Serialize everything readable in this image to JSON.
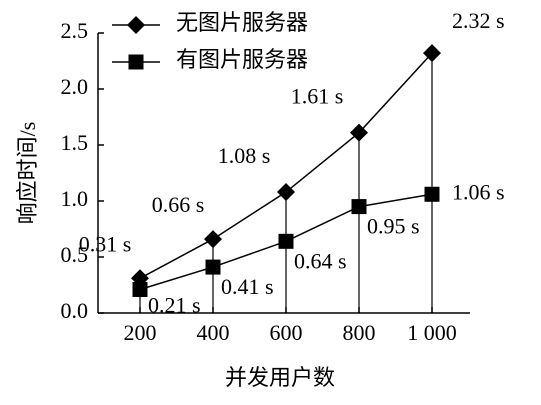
{
  "chart_data": {
    "type": "line",
    "x_label": "并发用户数",
    "y_label": "响应时间/s",
    "categories": [
      "200",
      "400",
      "600",
      "800",
      "1 000"
    ],
    "series": [
      {
        "name": "无图片服务器",
        "color": "#000000",
        "marker": "diamond",
        "values": [
          0.31,
          0.66,
          1.08,
          1.61,
          2.32
        ],
        "value_labels": [
          "0.31 s",
          "0.66 s",
          "1.08 s",
          "1.61 s",
          "2.32 s"
        ]
      },
      {
        "name": "有图片服务器",
        "color": "#000000",
        "marker": "square",
        "values": [
          0.21,
          0.41,
          0.64,
          0.95,
          1.06
        ],
        "value_labels": [
          "0.21 s",
          "0.41 s",
          "0.64 s",
          "0.95 s",
          "1.06 s"
        ]
      }
    ],
    "ylim": [
      0,
      2.5
    ],
    "yticks": [
      {
        "value": 0,
        "label": "0.0"
      },
      0.5,
      {
        "value": 1,
        "label": "1.0"
      },
      1.5,
      {
        "value": 2,
        "label": "2.0"
      },
      2.5
    ],
    "legend": "upper left"
  }
}
